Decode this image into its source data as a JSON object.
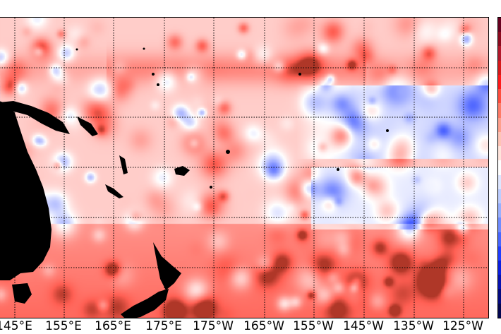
{
  "map": {
    "type": "anomaly-heatmap",
    "projection": "cylindrical",
    "lon_labels": [
      "145°E",
      "155°E",
      "165°E",
      "175°E",
      "175°W",
      "165°W",
      "155°W",
      "145°W",
      "135°W",
      "125°W"
    ],
    "grid": "dotted",
    "land_color": "#000000",
    "colormap": [
      "#67001f",
      "#8b0a1e",
      "#b2182b",
      "#d61a1a",
      "#ff1a1a",
      "#ff4d3d",
      "#ff7b66",
      "#ffa08c",
      "#ffc4b5",
      "#ffe4db",
      "#ffffff",
      "#dde6ff",
      "#bccdff",
      "#98b0ff",
      "#6f8cff",
      "#4766ff",
      "#1f3dff",
      "#0a1fe0",
      "#0612b0",
      "#030a80",
      "#02064f"
    ]
  }
}
